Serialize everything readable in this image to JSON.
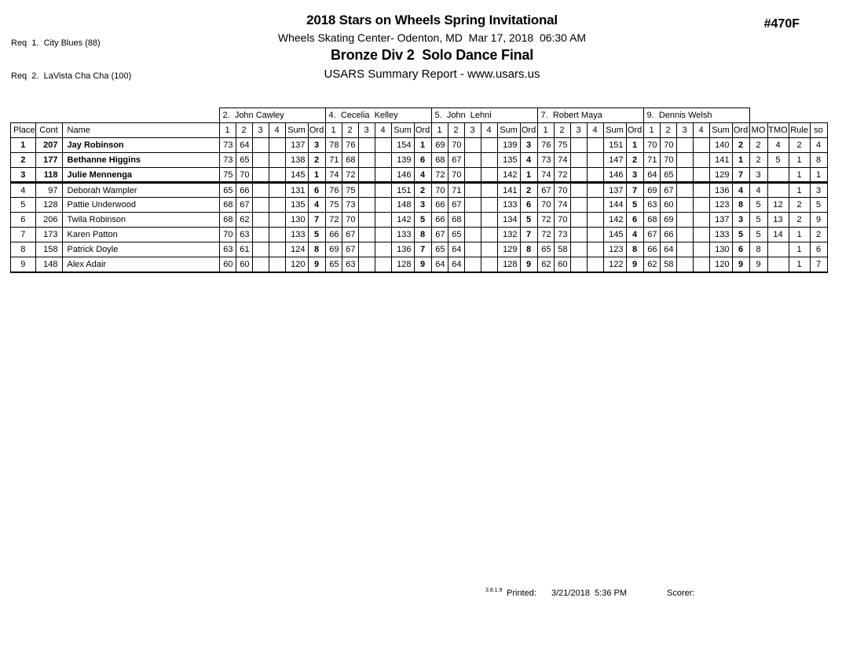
{
  "page": {
    "req_lines": [
      "Req  1.  City Blues (88)",
      "Req  2.  LaVista Cha Cha (100)"
    ],
    "event_number": "#470F",
    "title": "2018 Stars on Wheels Spring Invitational",
    "venue_line": "Wheels Skating Center- Odenton, MD  Mar 17, 2018  06:30 AM",
    "event_title": "Bronze Div 2  Solo Dance Final",
    "report_line": "USARS Summary Report - www.usars.us"
  },
  "table": {
    "judges": [
      "2.  John Cawley",
      "4.  Cecelia  Kelley",
      "5.  John  Lehni",
      "7.  Robert Maya",
      "9.  Dennis Welsh"
    ],
    "left_headers": [
      "Place",
      "Cont",
      "Name"
    ],
    "judge_sub_headers": [
      "1",
      "2",
      "3",
      "4",
      "Sum",
      "Ord"
    ],
    "right_headers": [
      "MO",
      "TMO",
      "Rule",
      "so"
    ],
    "rows": [
      {
        "place": "1",
        "cont": "207",
        "name": "Jay Robinson",
        "bold": true,
        "judges": [
          [
            "73",
            "64",
            "",
            "",
            "137",
            "3"
          ],
          [
            "78",
            "76",
            "",
            "",
            "154",
            "1"
          ],
          [
            "69",
            "70",
            "",
            "",
            "139",
            "3"
          ],
          [
            "76",
            "75",
            "",
            "",
            "151",
            "1"
          ],
          [
            "70",
            "70",
            "",
            "",
            "140",
            "2"
          ]
        ],
        "mo": "2",
        "tmo": "4",
        "rule": "2",
        "so": "4"
      },
      {
        "place": "2",
        "cont": "177",
        "name": "Bethanne Higgins",
        "bold": true,
        "judges": [
          [
            "73",
            "65",
            "",
            "",
            "138",
            "2"
          ],
          [
            "71",
            "68",
            "",
            "",
            "139",
            "6"
          ],
          [
            "68",
            "67",
            "",
            "",
            "135",
            "4"
          ],
          [
            "73",
            "74",
            "",
            "",
            "147",
            "2"
          ],
          [
            "71",
            "70",
            "",
            "",
            "141",
            "1"
          ]
        ],
        "mo": "2",
        "tmo": "5",
        "rule": "1",
        "so": "8"
      },
      {
        "place": "3",
        "cont": "118",
        "name": "Julie Mennenga",
        "bold": true,
        "judges": [
          [
            "75",
            "70",
            "",
            "",
            "145",
            "1"
          ],
          [
            "74",
            "72",
            "",
            "",
            "146",
            "4"
          ],
          [
            "72",
            "70",
            "",
            "",
            "142",
            "1"
          ],
          [
            "74",
            "72",
            "",
            "",
            "146",
            "3"
          ],
          [
            "64",
            "65",
            "",
            "",
            "129",
            "7"
          ]
        ],
        "mo": "3",
        "tmo": "",
        "rule": "1",
        "so": "1"
      },
      {
        "place": "4",
        "cont": "97",
        "name": "Deborah Wampler",
        "bold": false,
        "judges": [
          [
            "65",
            "66",
            "",
            "",
            "131",
            "6"
          ],
          [
            "76",
            "75",
            "",
            "",
            "151",
            "2"
          ],
          [
            "70",
            "71",
            "",
            "",
            "141",
            "2"
          ],
          [
            "67",
            "70",
            "",
            "",
            "137",
            "7"
          ],
          [
            "69",
            "67",
            "",
            "",
            "136",
            "4"
          ]
        ],
        "mo": "4",
        "tmo": "",
        "rule": "1",
        "so": "3"
      },
      {
        "place": "5",
        "cont": "128",
        "name": "Pattie Underwood",
        "bold": false,
        "judges": [
          [
            "68",
            "67",
            "",
            "",
            "135",
            "4"
          ],
          [
            "75",
            "73",
            "",
            "",
            "148",
            "3"
          ],
          [
            "66",
            "67",
            "",
            "",
            "133",
            "6"
          ],
          [
            "70",
            "74",
            "",
            "",
            "144",
            "5"
          ],
          [
            "63",
            "60",
            "",
            "",
            "123",
            "8"
          ]
        ],
        "mo": "5",
        "tmo": "12",
        "rule": "2",
        "so": "5"
      },
      {
        "place": "6",
        "cont": "206",
        "name": "Twila Robinson",
        "bold": false,
        "judges": [
          [
            "68",
            "62",
            "",
            "",
            "130",
            "7"
          ],
          [
            "72",
            "70",
            "",
            "",
            "142",
            "5"
          ],
          [
            "66",
            "68",
            "",
            "",
            "134",
            "5"
          ],
          [
            "72",
            "70",
            "",
            "",
            "142",
            "6"
          ],
          [
            "68",
            "69",
            "",
            "",
            "137",
            "3"
          ]
        ],
        "mo": "5",
        "tmo": "13",
        "rule": "2",
        "so": "9"
      },
      {
        "place": "7",
        "cont": "173",
        "name": "Karen Patton",
        "bold": false,
        "judges": [
          [
            "70",
            "63",
            "",
            "",
            "133",
            "5"
          ],
          [
            "66",
            "67",
            "",
            "",
            "133",
            "8"
          ],
          [
            "67",
            "65",
            "",
            "",
            "132",
            "7"
          ],
          [
            "72",
            "73",
            "",
            "",
            "145",
            "4"
          ],
          [
            "67",
            "66",
            "",
            "",
            "133",
            "5"
          ]
        ],
        "mo": "5",
        "tmo": "14",
        "rule": "1",
        "so": "2"
      },
      {
        "place": "8",
        "cont": "158",
        "name": "Patrick Doyle",
        "bold": false,
        "judges": [
          [
            "63",
            "61",
            "",
            "",
            "124",
            "8"
          ],
          [
            "69",
            "67",
            "",
            "",
            "136",
            "7"
          ],
          [
            "65",
            "64",
            "",
            "",
            "129",
            "8"
          ],
          [
            "65",
            "58",
            "",
            "",
            "123",
            "8"
          ],
          [
            "66",
            "64",
            "",
            "",
            "130",
            "6"
          ]
        ],
        "mo": "8",
        "tmo": "",
        "rule": "1",
        "so": "6"
      },
      {
        "place": "9",
        "cont": "148",
        "name": "Alex Adair",
        "bold": false,
        "judges": [
          [
            "60",
            "60",
            "",
            "",
            "120",
            "9"
          ],
          [
            "65",
            "63",
            "",
            "",
            "128",
            "9"
          ],
          [
            "64",
            "64",
            "",
            "",
            "128",
            "9"
          ],
          [
            "62",
            "60",
            "",
            "",
            "122",
            "9"
          ],
          [
            "62",
            "58",
            "",
            "",
            "120",
            "9"
          ]
        ],
        "mo": "9",
        "tmo": "",
        "rule": "1",
        "so": "7"
      }
    ]
  },
  "footer": {
    "version": "3.8.1.9",
    "printed_label": "Printed:",
    "printed_value": "3/21/2018  5:36 PM",
    "scorer_label": "Scorer:"
  }
}
